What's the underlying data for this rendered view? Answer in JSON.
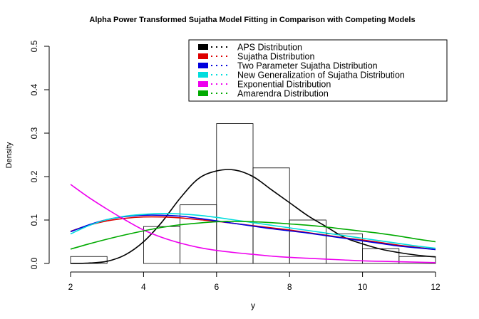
{
  "chart_data": {
    "type": "histogram_with_density_lines",
    "title": "Alpha Power Transformed Sujatha Model Fitting in Comparison with Competing Models",
    "xlabel": "y",
    "ylabel": "Density",
    "xlim": [
      2,
      12
    ],
    "ylim": [
      0,
      0.5
    ],
    "x_ticks": [
      "2",
      "4",
      "6",
      "8",
      "10",
      "12"
    ],
    "y_ticks": [
      "0.0",
      "0.1",
      "0.2",
      "0.3",
      "0.4",
      "0.5"
    ],
    "legend_position": "top-right",
    "histogram": {
      "bins": [
        [
          2,
          3
        ],
        [
          3,
          4
        ],
        [
          4,
          5
        ],
        [
          5,
          6
        ],
        [
          6,
          7
        ],
        [
          7,
          8
        ],
        [
          8,
          9
        ],
        [
          9,
          10
        ],
        [
          10,
          11
        ],
        [
          11,
          12
        ]
      ],
      "density": [
        0.016,
        0.0,
        0.085,
        0.135,
        0.322,
        0.22,
        0.1,
        0.068,
        0.034,
        0.016
      ],
      "edge_color": "#000000"
    },
    "x": [
      2,
      2.5,
      3,
      3.5,
      4,
      4.5,
      5,
      5.5,
      6,
      6.5,
      7,
      7.5,
      8,
      8.5,
      9,
      9.5,
      10,
      10.5,
      11,
      11.5,
      12
    ],
    "series": [
      {
        "name": "APS Distribution",
        "color": "#000000",
        "values": [
          0.0,
          0.001,
          0.005,
          0.02,
          0.05,
          0.095,
          0.15,
          0.195,
          0.213,
          0.215,
          0.2,
          0.17,
          0.14,
          0.11,
          0.085,
          0.06,
          0.045,
          0.033,
          0.025,
          0.019,
          0.015
        ]
      },
      {
        "name": "Sujatha Distribution",
        "color": "#dd0000",
        "values": [
          0.074,
          0.088,
          0.098,
          0.104,
          0.107,
          0.107,
          0.105,
          0.101,
          0.097,
          0.092,
          0.087,
          0.082,
          0.077,
          0.071,
          0.065,
          0.059,
          0.054,
          0.048,
          0.042,
          0.037,
          0.032
        ]
      },
      {
        "name": "Two Parameter Sujatha Distribution",
        "color": "#0000dd",
        "values": [
          0.073,
          0.089,
          0.101,
          0.108,
          0.111,
          0.111,
          0.109,
          0.104,
          0.098,
          0.092,
          0.086,
          0.08,
          0.075,
          0.07,
          0.064,
          0.058,
          0.052,
          0.046,
          0.04,
          0.036,
          0.032
        ]
      },
      {
        "name": "New Generalization of Sujatha Distribution",
        "color": "#00dddd",
        "values": [
          0.068,
          0.087,
          0.101,
          0.109,
          0.113,
          0.115,
          0.114,
          0.111,
          0.106,
          0.1,
          0.094,
          0.088,
          0.082,
          0.076,
          0.07,
          0.064,
          0.058,
          0.052,
          0.046,
          0.04,
          0.035
        ]
      },
      {
        "name": "Exponential Distribution",
        "color": "#ee00ee",
        "values": [
          0.182,
          0.152,
          0.125,
          0.1,
          0.077,
          0.06,
          0.047,
          0.037,
          0.03,
          0.025,
          0.021,
          0.017,
          0.014,
          0.012,
          0.01,
          0.008,
          0.006,
          0.005,
          0.004,
          0.003,
          0.002
        ]
      },
      {
        "name": "Amarendra Distribution",
        "color": "#00aa00",
        "values": [
          0.033,
          0.045,
          0.056,
          0.066,
          0.075,
          0.083,
          0.089,
          0.093,
          0.096,
          0.097,
          0.096,
          0.094,
          0.091,
          0.088,
          0.084,
          0.079,
          0.074,
          0.069,
          0.063,
          0.056,
          0.05
        ]
      }
    ]
  }
}
